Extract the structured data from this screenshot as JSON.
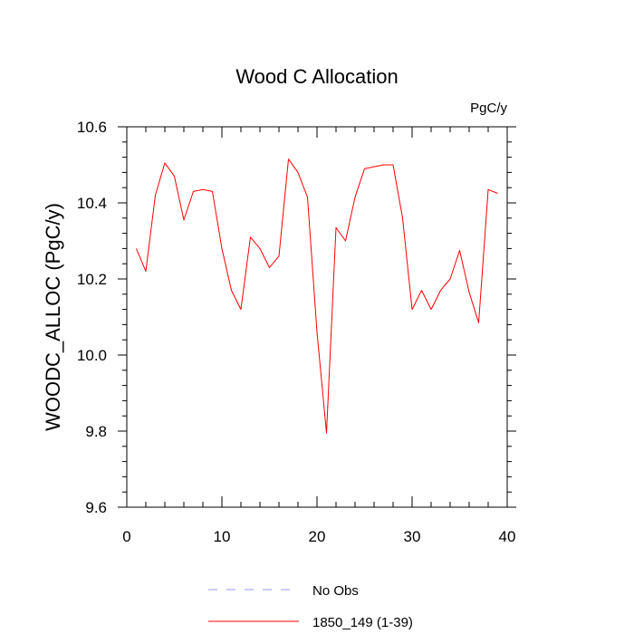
{
  "colors": {
    "series": "#ff0000",
    "reference": "#9999ff",
    "axis": "#000000",
    "background": "#ffffff"
  },
  "chart_data": {
    "type": "line",
    "title": "Wood C Allocation",
    "units_label": "PgC/y",
    "xlabel": "",
    "ylabel": "WOODC_ALLOC  (PgC/y)",
    "xlim": [
      0,
      40
    ],
    "ylim": [
      9.6,
      10.6
    ],
    "x_ticks": [
      0,
      10,
      20,
      30,
      40
    ],
    "x_tick_labels": [
      "0",
      "10",
      "20",
      "30",
      "40"
    ],
    "y_ticks": [
      9.6,
      9.8,
      10.0,
      10.2,
      10.4,
      10.6
    ],
    "y_tick_labels": [
      "9.6",
      "9.8",
      "10.0",
      "10.2",
      "10.4",
      "10.6"
    ],
    "grid": false,
    "legend_position": "bottom-center",
    "series": [
      {
        "name": "No Obs",
        "style": "dashed",
        "color": "#9999ff",
        "x": [],
        "values": []
      },
      {
        "name": "1850_149 (1-39)",
        "style": "solid",
        "color": "#ff0000",
        "x": [
          1,
          2,
          3,
          4,
          5,
          6,
          7,
          8,
          9,
          10,
          11,
          12,
          13,
          14,
          15,
          16,
          17,
          18,
          19,
          20,
          21,
          22,
          23,
          24,
          25,
          26,
          27,
          28,
          29,
          30,
          31,
          32,
          33,
          34,
          35,
          36,
          37,
          38,
          39
        ],
        "values": [
          10.28,
          10.22,
          10.42,
          10.505,
          10.47,
          10.355,
          10.43,
          10.435,
          10.43,
          10.28,
          10.17,
          10.12,
          10.31,
          10.28,
          10.23,
          10.26,
          10.515,
          10.48,
          10.415,
          10.06,
          9.795,
          10.335,
          10.3,
          10.415,
          10.49,
          10.495,
          10.5,
          10.5,
          10.36,
          10.12,
          10.17,
          10.12,
          10.17,
          10.2,
          10.275,
          10.165,
          10.085,
          10.435,
          10.425
        ]
      }
    ]
  }
}
